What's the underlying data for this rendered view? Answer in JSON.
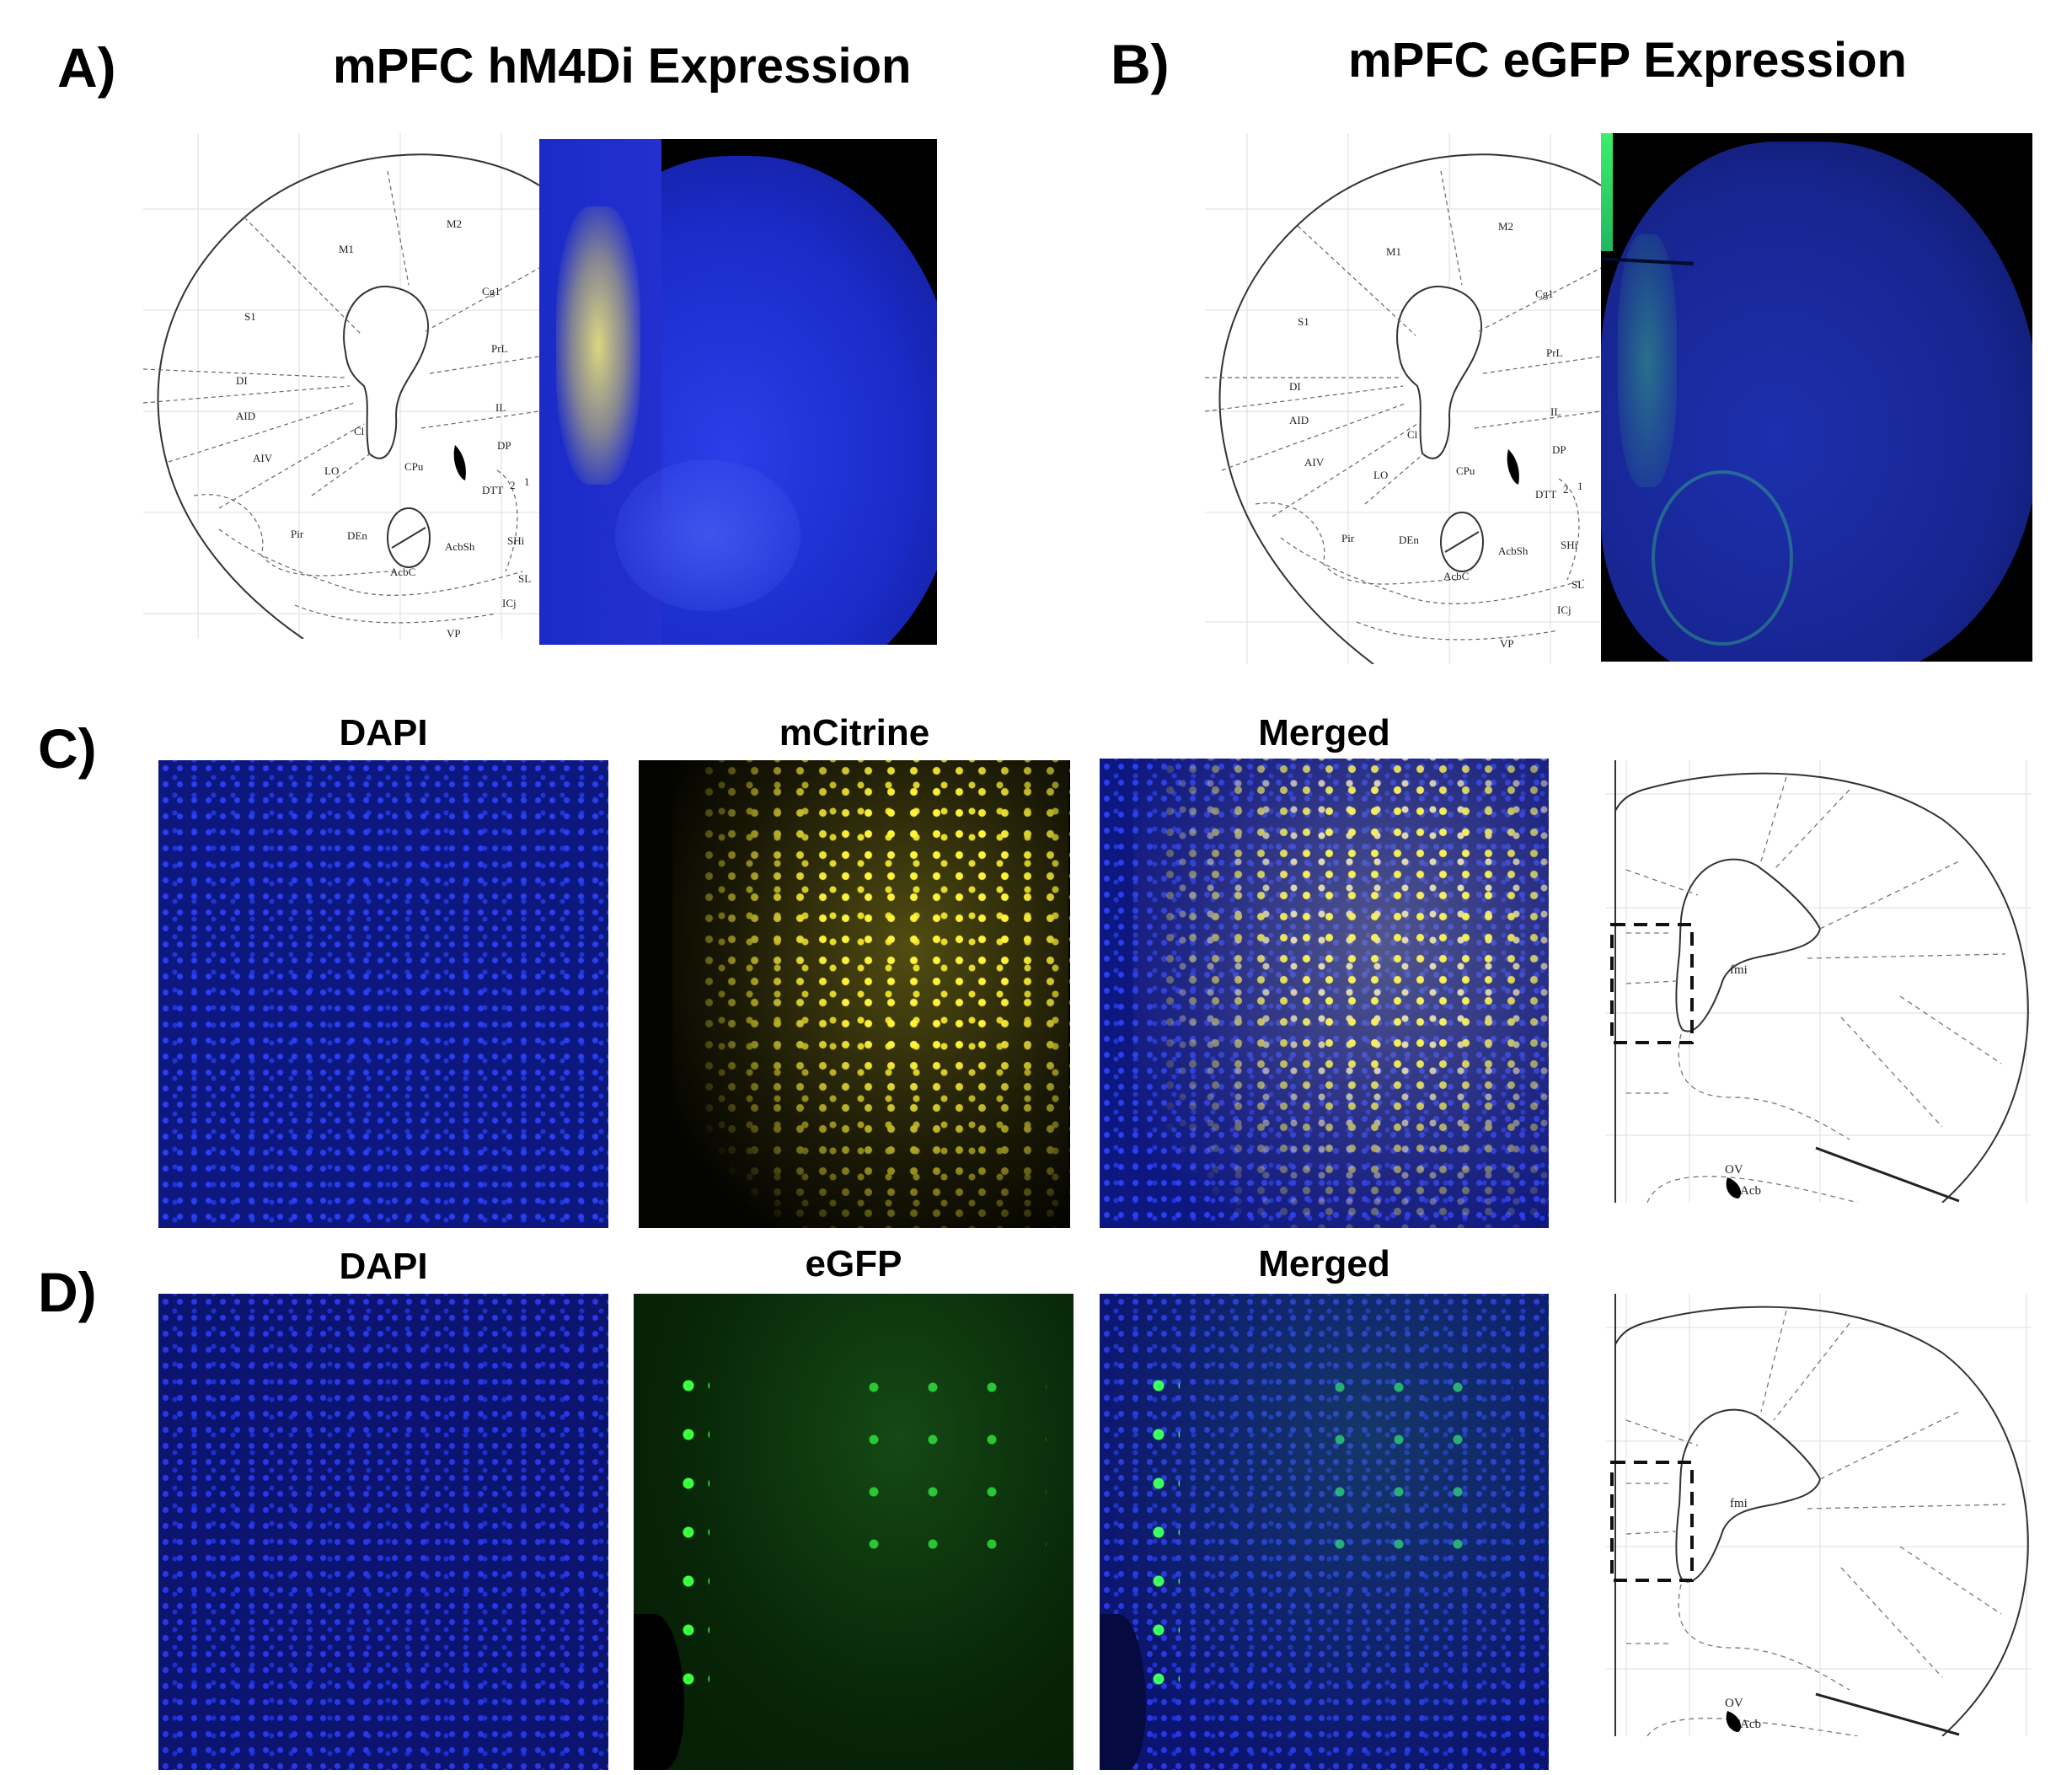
{
  "panels": {
    "a": {
      "letter": "A)",
      "title": "mPFC hM4Di Expression"
    },
    "b": {
      "letter": "B)",
      "title": "mPFC eGFP Expression"
    },
    "c": {
      "letter": "C)",
      "columns": [
        "DAPI",
        "mCitrine",
        "Merged"
      ]
    },
    "d": {
      "letter": "D)",
      "columns": [
        "DAPI",
        "eGFP",
        "Merged"
      ]
    }
  },
  "atlas_labels": {
    "regions": [
      "M1",
      "M2",
      "S1",
      "Cg1",
      "PrL",
      "DI",
      "AID",
      "IL",
      "Cl",
      "AIV",
      "DP",
      "LO",
      "CPu",
      "DTT",
      "Pir",
      "DEn",
      "AcbSh",
      "SHi",
      "AcbC",
      "SL",
      "ICj",
      "VP"
    ],
    "layer_marks": [
      "2",
      "1"
    ],
    "inset": [
      "fmi",
      "OV",
      "Acb"
    ]
  },
  "colors": {
    "dapi": "#1a2bd6",
    "mcitrine": "#f5ee2a",
    "egfp": "#2ef03a",
    "background_dark": "#000000"
  }
}
